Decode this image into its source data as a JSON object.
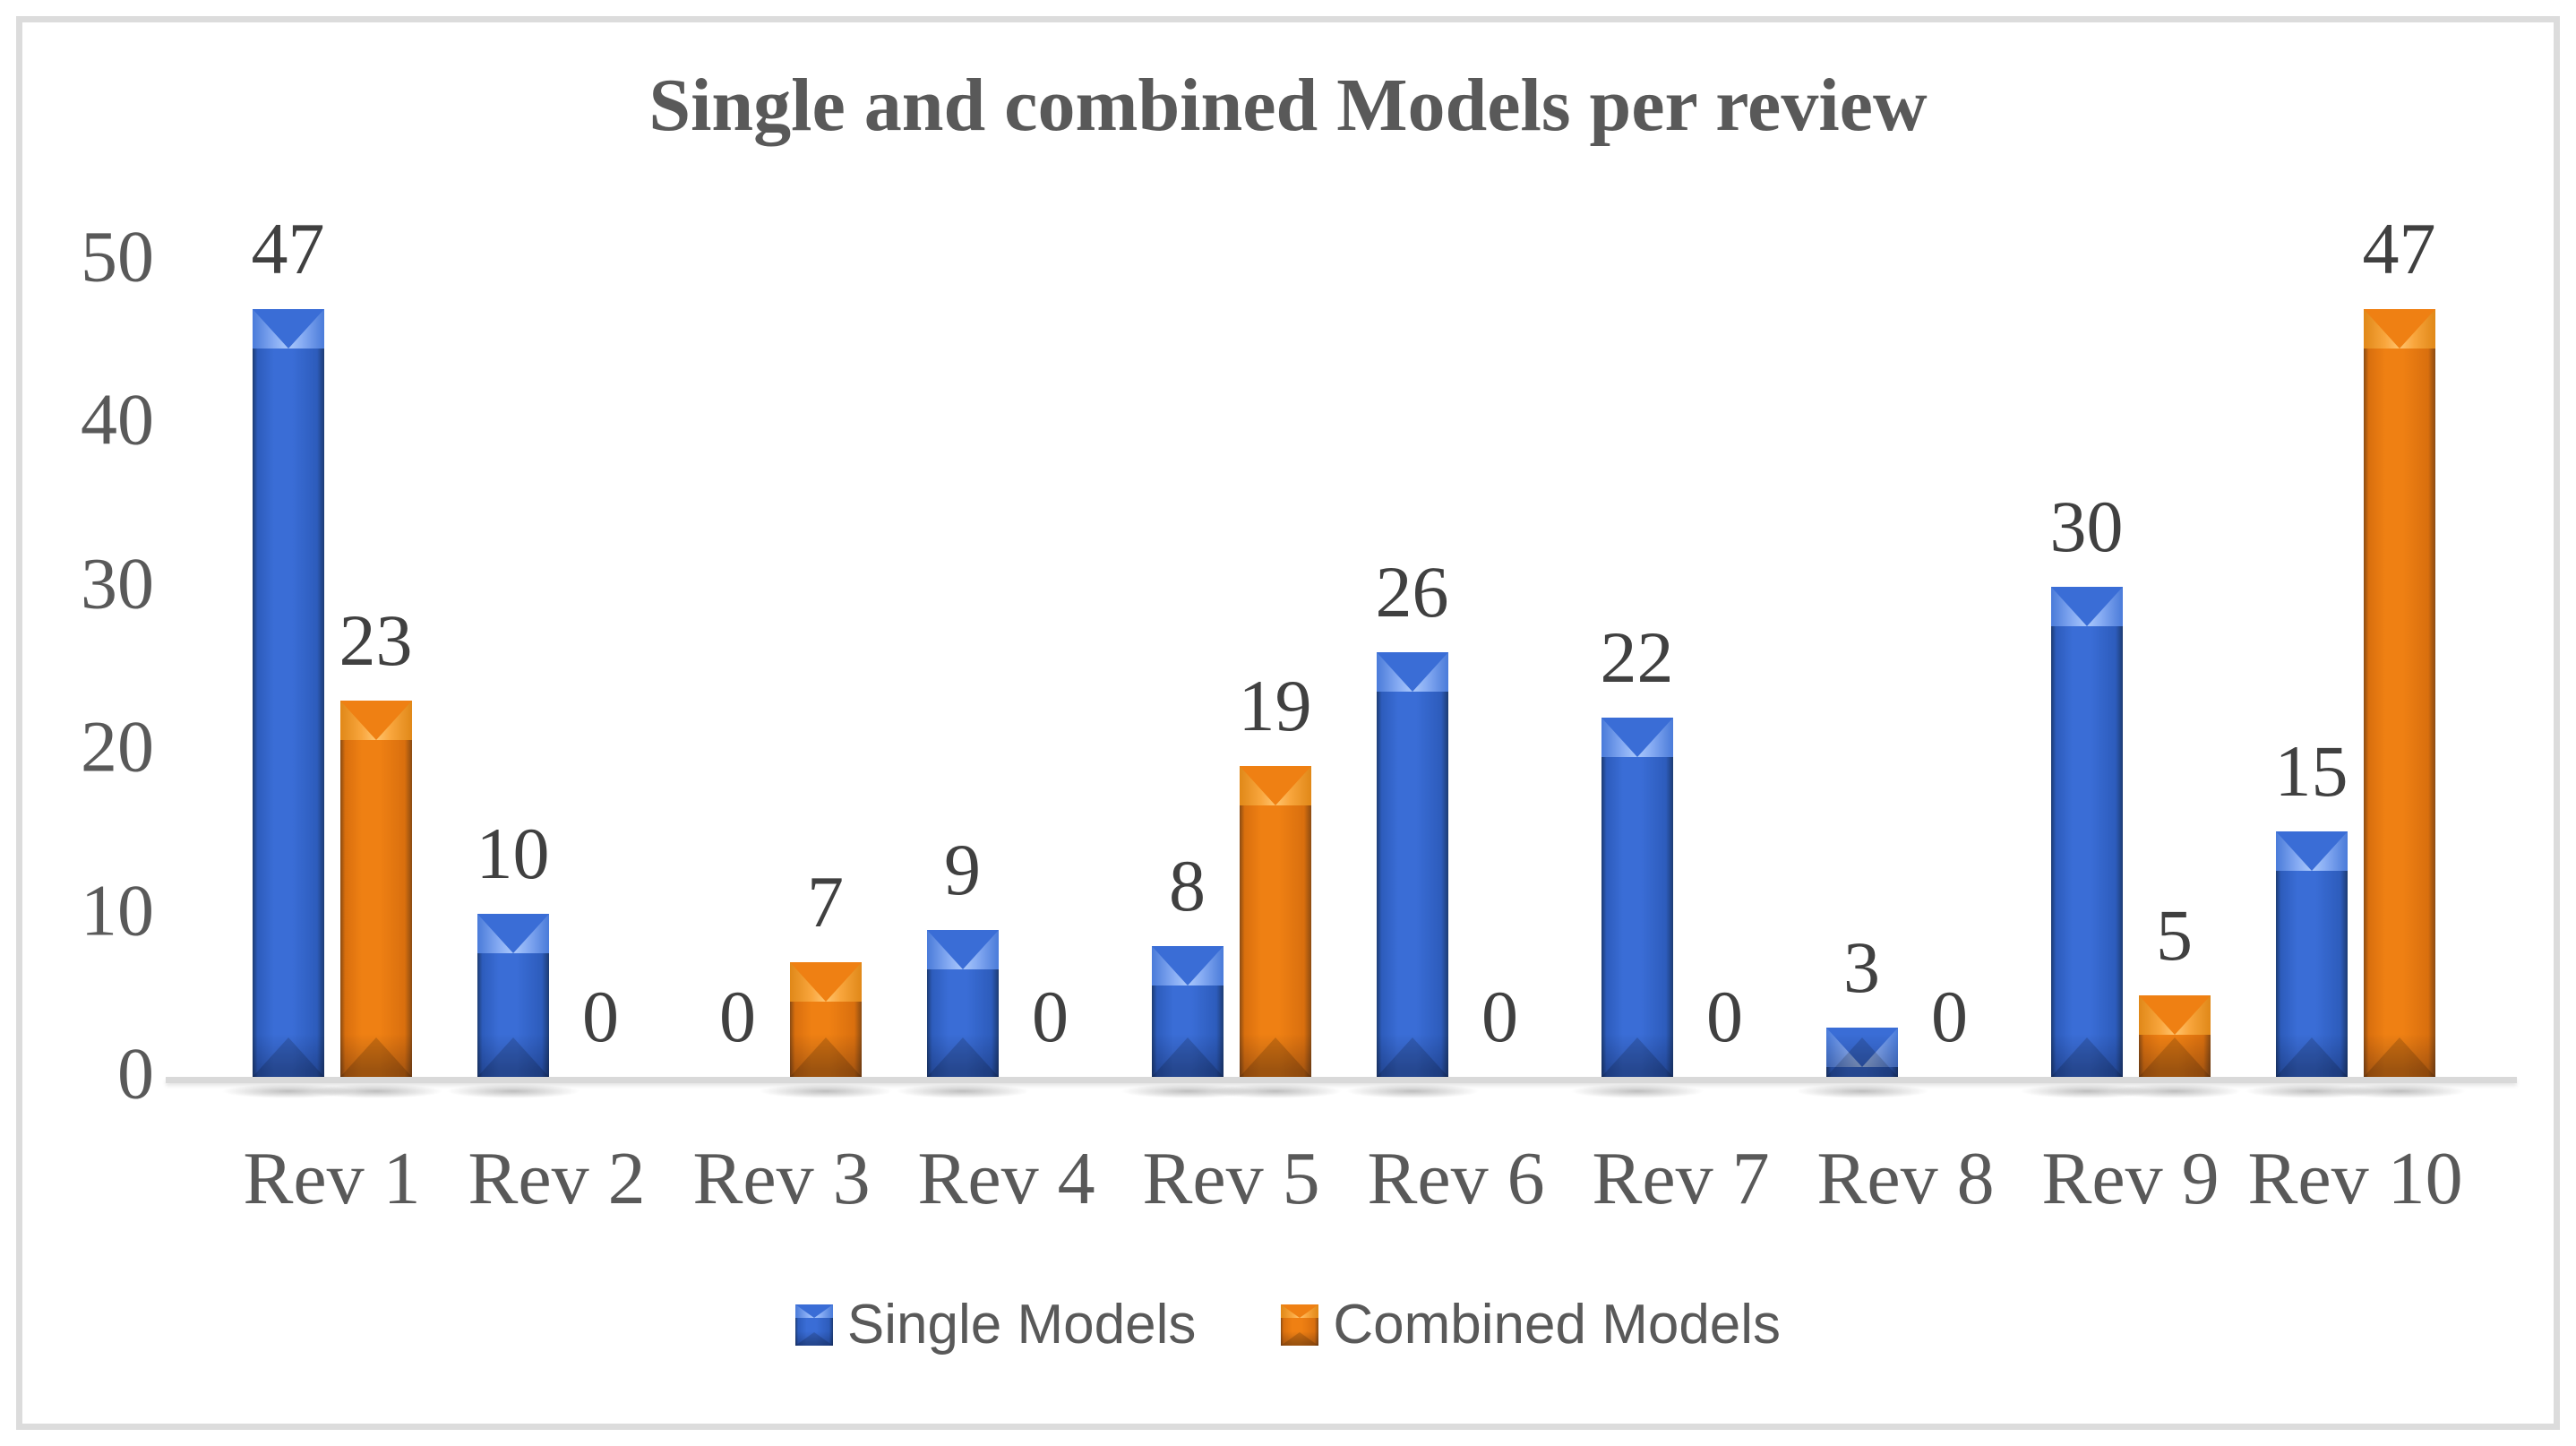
{
  "chart_data": {
    "type": "bar",
    "title": "Single and combined Models per review",
    "categories": [
      "Rev 1",
      "Rev 2",
      "Rev 3",
      "Rev 4",
      "Rev 5",
      "Rev 6",
      "Rev 7",
      "Rev 8",
      "Rev 9",
      "Rev 10"
    ],
    "series": [
      {
        "name": "Single Models",
        "color": "#3a6dd6",
        "values": [
          47,
          10,
          0,
          9,
          8,
          26,
          22,
          3,
          30,
          15
        ]
      },
      {
        "name": "Combined Models",
        "color": "#ef8013",
        "values": [
          23,
          0,
          7,
          0,
          19,
          0,
          0,
          0,
          5,
          47
        ]
      }
    ],
    "ylim": [
      0,
      50
    ],
    "yticks": [
      0,
      10,
      20,
      30,
      40,
      50
    ],
    "xlabel": "",
    "ylabel": "",
    "grid": false,
    "data_labels": true,
    "legend_position": "bottom"
  },
  "styles": {
    "title_color": "#595959",
    "axis_text_color": "#595959",
    "data_label_color": "#404040",
    "axis_line_color": "#d9d9d9"
  }
}
